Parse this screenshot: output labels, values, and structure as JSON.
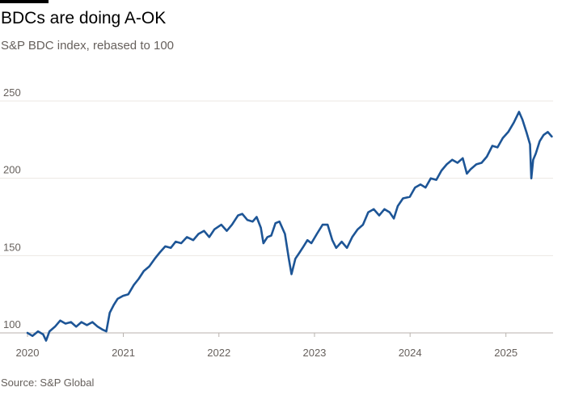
{
  "header": {
    "title": "BDCs are doing A-OK",
    "subtitle": "S&P BDC index, rebased to 100"
  },
  "footer": {
    "source": "Source: S&P Global"
  },
  "colors": {
    "line": "#1d5596",
    "grid": "#ebe7e3",
    "text": "#66605c"
  },
  "chart_data": {
    "type": "line",
    "title": "BDCs are doing A-OK",
    "subtitle": "S&P BDC index, rebased to 100",
    "xlabel": "",
    "ylabel": "",
    "xlim": [
      "2020-01-01",
      "2025-06-30"
    ],
    "ylim": [
      100,
      250
    ],
    "y_ticks": [
      100,
      150,
      200,
      250
    ],
    "x_ticks": [
      {
        "date": "2020-01-01",
        "label": "2020"
      },
      {
        "date": "2021-01-01",
        "label": "2021"
      },
      {
        "date": "2022-01-01",
        "label": "2022"
      },
      {
        "date": "2023-01-01",
        "label": "2023"
      },
      {
        "date": "2024-01-01",
        "label": "2024"
      },
      {
        "date": "2025-01-01",
        "label": "2025"
      }
    ],
    "grid": "horizontal",
    "legend": "none",
    "series": [
      {
        "values": [
          [
            "2020-01-01",
            100
          ],
          [
            "2020-01-20",
            98
          ],
          [
            "2020-02-10",
            101
          ],
          [
            "2020-03-01",
            99
          ],
          [
            "2020-03-12",
            95
          ],
          [
            "2020-03-25",
            101
          ],
          [
            "2020-04-15",
            104
          ],
          [
            "2020-05-05",
            108
          ],
          [
            "2020-05-25",
            106
          ],
          [
            "2020-06-15",
            107
          ],
          [
            "2020-07-05",
            104
          ],
          [
            "2020-07-25",
            107
          ],
          [
            "2020-08-15",
            105
          ],
          [
            "2020-09-05",
            107
          ],
          [
            "2020-09-25",
            104
          ],
          [
            "2020-10-15",
            102
          ],
          [
            "2020-10-28",
            101
          ],
          [
            "2020-11-10",
            113
          ],
          [
            "2020-11-25",
            118
          ],
          [
            "2020-12-10",
            122
          ],
          [
            "2020-12-31",
            124
          ],
          [
            "2021-01-20",
            125
          ],
          [
            "2021-02-10",
            131
          ],
          [
            "2021-03-01",
            135
          ],
          [
            "2021-03-20",
            140
          ],
          [
            "2021-04-10",
            143
          ],
          [
            "2021-05-01",
            148
          ],
          [
            "2021-05-20",
            152
          ],
          [
            "2021-06-10",
            156
          ],
          [
            "2021-07-01",
            155
          ],
          [
            "2021-07-20",
            159
          ],
          [
            "2021-08-10",
            158
          ],
          [
            "2021-09-01",
            162
          ],
          [
            "2021-09-25",
            160
          ],
          [
            "2021-10-15",
            164
          ],
          [
            "2021-11-05",
            166
          ],
          [
            "2021-11-25",
            162
          ],
          [
            "2021-12-15",
            167
          ],
          [
            "2022-01-10",
            170
          ],
          [
            "2022-01-31",
            166
          ],
          [
            "2022-02-20",
            170
          ],
          [
            "2022-03-15",
            176
          ],
          [
            "2022-03-31",
            177
          ],
          [
            "2022-04-20",
            173
          ],
          [
            "2022-05-10",
            172
          ],
          [
            "2022-05-25",
            175
          ],
          [
            "2022-06-10",
            168
          ],
          [
            "2022-06-20",
            158
          ],
          [
            "2022-07-05",
            162
          ],
          [
            "2022-07-20",
            163
          ],
          [
            "2022-08-05",
            171
          ],
          [
            "2022-08-20",
            172
          ],
          [
            "2022-09-10",
            164
          ],
          [
            "2022-09-25",
            148
          ],
          [
            "2022-10-05",
            138
          ],
          [
            "2022-10-20",
            148
          ],
          [
            "2022-11-05",
            152
          ],
          [
            "2022-11-20",
            156
          ],
          [
            "2022-12-05",
            160
          ],
          [
            "2022-12-20",
            158
          ],
          [
            "2023-01-10",
            164
          ],
          [
            "2023-02-01",
            170
          ],
          [
            "2023-02-20",
            170
          ],
          [
            "2023-03-10",
            160
          ],
          [
            "2023-03-25",
            155
          ],
          [
            "2023-04-15",
            159
          ],
          [
            "2023-05-05",
            155
          ],
          [
            "2023-05-25",
            162
          ],
          [
            "2023-06-15",
            167
          ],
          [
            "2023-07-05",
            170
          ],
          [
            "2023-07-25",
            178
          ],
          [
            "2023-08-15",
            180
          ],
          [
            "2023-09-05",
            176
          ],
          [
            "2023-09-25",
            180
          ],
          [
            "2023-10-15",
            178
          ],
          [
            "2023-10-31",
            174
          ],
          [
            "2023-11-15",
            182
          ],
          [
            "2023-12-05",
            187
          ],
          [
            "2023-12-31",
            188
          ],
          [
            "2024-01-20",
            194
          ],
          [
            "2024-02-10",
            196
          ],
          [
            "2024-02-29",
            194
          ],
          [
            "2024-03-20",
            200
          ],
          [
            "2024-04-10",
            199
          ],
          [
            "2024-04-30",
            205
          ],
          [
            "2024-05-20",
            209
          ],
          [
            "2024-06-10",
            212
          ],
          [
            "2024-06-30",
            210
          ],
          [
            "2024-07-20",
            213
          ],
          [
            "2024-08-05",
            203
          ],
          [
            "2024-08-20",
            206
          ],
          [
            "2024-09-10",
            209
          ],
          [
            "2024-09-30",
            210
          ],
          [
            "2024-10-20",
            214
          ],
          [
            "2024-11-10",
            221
          ],
          [
            "2024-11-30",
            220
          ],
          [
            "2024-12-20",
            226
          ],
          [
            "2025-01-10",
            230
          ],
          [
            "2025-01-31",
            236
          ],
          [
            "2025-02-20",
            243
          ],
          [
            "2025-03-05",
            238
          ],
          [
            "2025-03-20",
            230
          ],
          [
            "2025-04-03",
            222
          ],
          [
            "2025-04-08",
            200
          ],
          [
            "2025-04-15",
            212
          ],
          [
            "2025-04-25",
            216
          ],
          [
            "2025-05-10",
            224
          ],
          [
            "2025-05-25",
            228
          ],
          [
            "2025-06-10",
            230
          ],
          [
            "2025-06-25",
            227
          ]
        ]
      }
    ]
  }
}
